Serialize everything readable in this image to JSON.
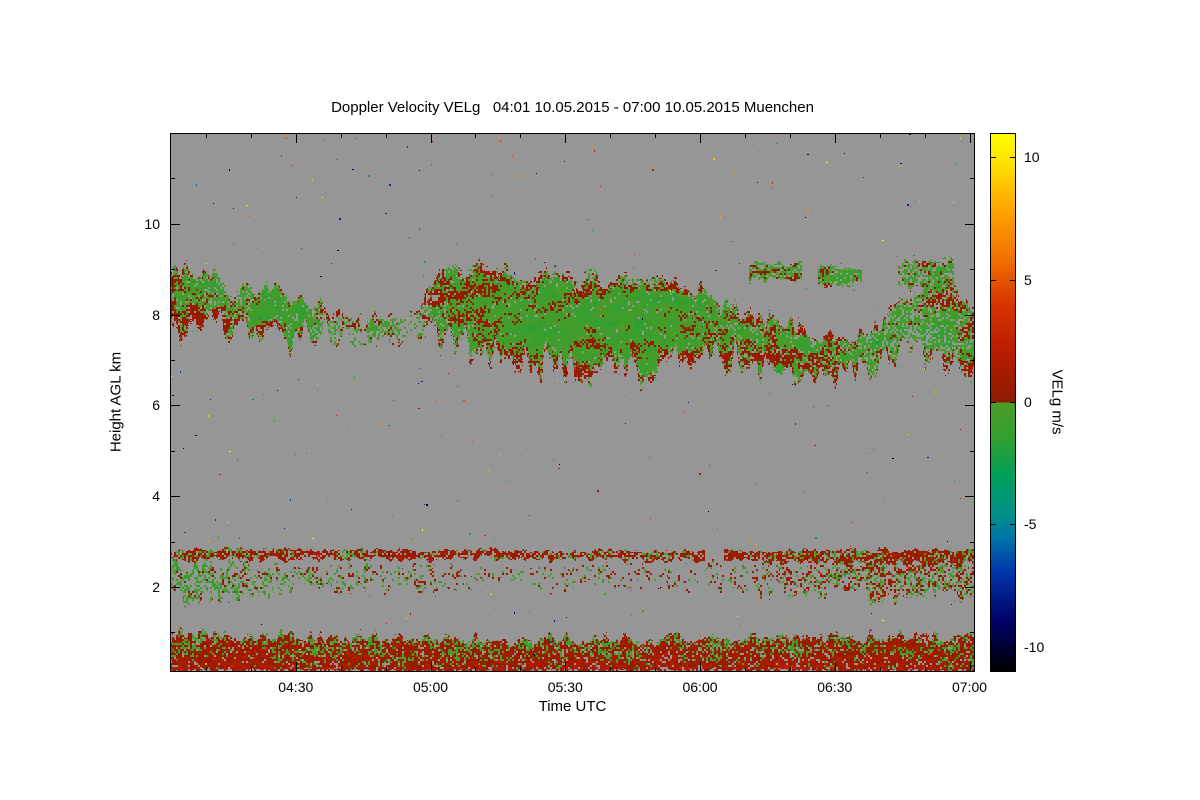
{
  "page": {
    "background": "#ffffff"
  },
  "chart_data": {
    "type": "heatmap",
    "title": "Doppler Velocity VELg   04:01 10.05.2015 - 07:00 10.05.2015 Muenchen",
    "xlabel": "Time UTC",
    "ylabel": "Height AGL km",
    "x_range_minutes": [
      242,
      421
    ],
    "x_ticks": [
      {
        "minute": 270,
        "label": "04:30"
      },
      {
        "minute": 300,
        "label": "05:00"
      },
      {
        "minute": 330,
        "label": "05:30"
      },
      {
        "minute": 360,
        "label": "06:00"
      },
      {
        "minute": 390,
        "label": "06:30"
      },
      {
        "minute": 420,
        "label": "07:00"
      }
    ],
    "x_minor_step_minutes": 10,
    "y_range_km": [
      0.15,
      12.0
    ],
    "y_ticks": [
      {
        "km": 2,
        "label": "2"
      },
      {
        "km": 4,
        "label": "4"
      },
      {
        "km": 6,
        "label": "6"
      },
      {
        "km": 8,
        "label": "8"
      },
      {
        "km": 10,
        "label": "10"
      }
    ],
    "y_minor_step_km": 1,
    "no_data_color": "#969696",
    "frame_color": "#000000",
    "colorbar": {
      "label": "VELg m/s",
      "vmin": -11,
      "vmax": 11,
      "ticks": [
        {
          "v": 10,
          "label": "10"
        },
        {
          "v": 5,
          "label": "5"
        },
        {
          "v": 0,
          "label": "0"
        },
        {
          "v": -5,
          "label": "-5"
        },
        {
          "v": -10,
          "label": "-10"
        }
      ]
    },
    "colormap": [
      {
        "v": -11,
        "c": "#000000"
      },
      {
        "v": -9,
        "c": "#000066"
      },
      {
        "v": -7,
        "c": "#0033a8"
      },
      {
        "v": -5.5,
        "c": "#0076a8"
      },
      {
        "v": -4.5,
        "c": "#009287"
      },
      {
        "v": -3,
        "c": "#00a05c"
      },
      {
        "v": -1.5,
        "c": "#30a030"
      },
      {
        "v": -0.01,
        "c": "#4f9c28"
      },
      {
        "v": 0.01,
        "c": "#8b1c00"
      },
      {
        "v": 2,
        "c": "#b81c00"
      },
      {
        "v": 4,
        "c": "#d83400"
      },
      {
        "v": 6,
        "c": "#f27500"
      },
      {
        "v": 8,
        "c": "#ffa800"
      },
      {
        "v": 9.5,
        "c": "#ffd900"
      },
      {
        "v": 11,
        "c": "#ffff00"
      }
    ],
    "layers": [
      {
        "name": "high-cloud-band",
        "seed": 11,
        "cell": 2,
        "edge_noise_bot": 0.5,
        "edge_noise_top": 0.28,
        "edge_v_boost": 0.8,
        "v_amp": [
          0.7,
          0.55,
          0.6
        ],
        "grad_v": [
          0,
          0
        ],
        "points": [
          {
            "t": 0.0,
            "bot": 7.55,
            "top": 9.1,
            "d": 0.92,
            "v": -0.35
          },
          {
            "t": 0.055,
            "bot": 7.65,
            "top": 8.95,
            "d": 0.85,
            "v": -0.3
          },
          {
            "t": 0.075,
            "bot": 7.65,
            "top": 8.45,
            "d": 0.7,
            "v": -0.35
          },
          {
            "t": 0.12,
            "bot": 7.55,
            "top": 8.75,
            "d": 0.95,
            "v": -0.5
          },
          {
            "t": 0.17,
            "bot": 7.45,
            "top": 8.45,
            "d": 0.9,
            "v": -0.5
          },
          {
            "t": 0.2,
            "bot": 7.55,
            "top": 8.05,
            "d": 0.45,
            "v": -0.45
          },
          {
            "t": 0.23,
            "bot": 7.55,
            "top": 7.95,
            "d": 0.15,
            "v": -0.4
          },
          {
            "t": 0.26,
            "bot": 7.45,
            "top": 8.0,
            "d": 0.35,
            "v": -0.45
          },
          {
            "t": 0.3,
            "bot": 7.55,
            "top": 7.95,
            "d": 0.15,
            "v": -0.4
          },
          {
            "t": 0.33,
            "bot": 7.5,
            "top": 8.9,
            "d": 0.8,
            "v": -0.4
          },
          {
            "t": 0.36,
            "bot": 7.3,
            "top": 9.1,
            "d": 0.95,
            "v": -0.45
          },
          {
            "t": 0.42,
            "bot": 7.0,
            "top": 9.0,
            "d": 0.96,
            "v": -0.5
          },
          {
            "t": 0.48,
            "bot": 6.8,
            "top": 8.9,
            "d": 0.96,
            "v": -0.5
          },
          {
            "t": 0.55,
            "bot": 6.6,
            "top": 8.85,
            "d": 0.96,
            "v": -0.5
          },
          {
            "t": 0.62,
            "bot": 6.8,
            "top": 8.9,
            "d": 0.95,
            "v": -0.45
          },
          {
            "t": 0.66,
            "bot": 7.0,
            "top": 8.6,
            "d": 0.92,
            "v": -0.45
          },
          {
            "t": 0.7,
            "bot": 6.9,
            "top": 8.2,
            "d": 0.88,
            "v": -0.4
          },
          {
            "t": 0.75,
            "bot": 6.7,
            "top": 7.95,
            "d": 0.88,
            "v": -0.4
          },
          {
            "t": 0.8,
            "bot": 6.6,
            "top": 7.6,
            "d": 0.85,
            "v": -0.4
          },
          {
            "t": 0.84,
            "bot": 6.5,
            "top": 7.5,
            "d": 0.85,
            "v": -0.4
          },
          {
            "t": 0.88,
            "bot": 6.9,
            "top": 7.8,
            "d": 0.75,
            "v": -0.4
          },
          {
            "t": 0.92,
            "bot": 7.2,
            "top": 8.6,
            "d": 0.6,
            "v": -0.4
          },
          {
            "t": 0.96,
            "bot": 7.0,
            "top": 9.0,
            "d": 0.75,
            "v": -0.4
          },
          {
            "t": 1.0,
            "bot": 6.9,
            "top": 8.3,
            "d": 0.8,
            "v": -0.4
          }
        ]
      },
      {
        "name": "mid-layer-line",
        "seed": 23,
        "cell": 2,
        "edge_noise_bot": 0.1,
        "edge_noise_top": 0.08,
        "edge_v_boost": 0,
        "v_amp": [
          0.4,
          0.5,
          0.9
        ],
        "grad_v": [
          0,
          0
        ],
        "gate": 0.16,
        "points": [
          {
            "t": 0.0,
            "bot": 2.6,
            "top": 2.85,
            "d": 0.8,
            "v": 0.5
          },
          {
            "t": 0.3,
            "bot": 2.62,
            "top": 2.84,
            "d": 0.75,
            "v": 0.55
          },
          {
            "t": 0.6,
            "bot": 2.6,
            "top": 2.82,
            "d": 0.72,
            "v": 0.55
          },
          {
            "t": 0.82,
            "bot": 2.55,
            "top": 2.85,
            "d": 0.8,
            "v": 0.5
          },
          {
            "t": 1.0,
            "bot": 2.5,
            "top": 2.85,
            "d": 0.85,
            "v": 0.4
          }
        ]
      },
      {
        "name": "mid-layer-speckle",
        "seed": 37,
        "cell": 2,
        "edge_noise_bot": 0.3,
        "edge_noise_top": 0.25,
        "edge_v_boost": 0,
        "v_amp": [
          0.5,
          0.5,
          1.0
        ],
        "grad_v": [
          0,
          0
        ],
        "points": [
          {
            "t": 0.0,
            "bot": 1.7,
            "top": 2.6,
            "d": 0.55,
            "v": -0.6
          },
          {
            "t": 0.07,
            "bot": 1.75,
            "top": 2.55,
            "d": 0.45,
            "v": -0.5
          },
          {
            "t": 0.15,
            "bot": 1.85,
            "top": 2.5,
            "d": 0.25,
            "v": -0.2
          },
          {
            "t": 0.3,
            "bot": 1.95,
            "top": 2.5,
            "d": 0.2,
            "v": 0.1
          },
          {
            "t": 0.45,
            "bot": 2.0,
            "top": 2.45,
            "d": 0.13,
            "v": 0.15
          },
          {
            "t": 0.6,
            "bot": 1.95,
            "top": 2.5,
            "d": 0.15,
            "v": 0.2
          },
          {
            "t": 0.72,
            "bot": 1.9,
            "top": 2.55,
            "d": 0.22,
            "v": 0.2
          },
          {
            "t": 0.8,
            "bot": 1.85,
            "top": 2.6,
            "d": 0.35,
            "v": 0.15
          },
          {
            "t": 0.88,
            "bot": 1.78,
            "top": 2.62,
            "d": 0.55,
            "v": 0.1
          },
          {
            "t": 1.0,
            "bot": 1.8,
            "top": 2.62,
            "d": 0.5,
            "v": 0.0
          }
        ]
      },
      {
        "name": "boundary-layer",
        "seed": 51,
        "cell": 2,
        "edge_noise_bot": 0.04,
        "edge_noise_top": 0.18,
        "edge_v_boost": 0,
        "v_amp": [
          0.5,
          0.6,
          1.0
        ],
        "grad_v": [
          0.7,
          -0.3
        ],
        "points": [
          {
            "t": 0.0,
            "bot": 0.1,
            "top": 1.02,
            "d": 0.9,
            "v": 0.45
          },
          {
            "t": 0.1,
            "bot": 0.1,
            "top": 0.98,
            "d": 0.9,
            "v": 0.45
          },
          {
            "t": 0.3,
            "bot": 0.1,
            "top": 0.92,
            "d": 0.88,
            "v": 0.4
          },
          {
            "t": 0.5,
            "bot": 0.1,
            "top": 0.9,
            "d": 0.88,
            "v": 0.4
          },
          {
            "t": 0.7,
            "bot": 0.1,
            "top": 0.92,
            "d": 0.88,
            "v": 0.45
          },
          {
            "t": 0.85,
            "bot": 0.1,
            "top": 0.98,
            "d": 0.9,
            "v": 0.45
          },
          {
            "t": 1.0,
            "bot": 0.1,
            "top": 0.96,
            "d": 0.9,
            "v": 0.45
          }
        ]
      }
    ],
    "patches": [
      {
        "t0": 0.72,
        "t1": 0.785,
        "bot": 8.75,
        "top": 9.15,
        "d": 0.8,
        "v": -0.45,
        "seed": 61
      },
      {
        "t0": 0.805,
        "t1": 0.86,
        "bot": 8.65,
        "top": 9.05,
        "d": 0.85,
        "v": -0.5,
        "seed": 62
      },
      {
        "t0": 0.905,
        "t1": 0.975,
        "bot": 8.55,
        "top": 9.2,
        "d": 0.7,
        "v": -0.4,
        "seed": 63
      },
      {
        "t0": 0.21,
        "t1": 0.235,
        "bot": 7.6,
        "top": 7.95,
        "d": 0.45,
        "v": -0.4,
        "seed": 64
      },
      {
        "t0": 0.245,
        "t1": 0.285,
        "bot": 7.45,
        "top": 7.9,
        "d": 0.5,
        "v": -0.45,
        "seed": 65
      }
    ],
    "speckle": {
      "count": 330,
      "seed": 77
    }
  }
}
